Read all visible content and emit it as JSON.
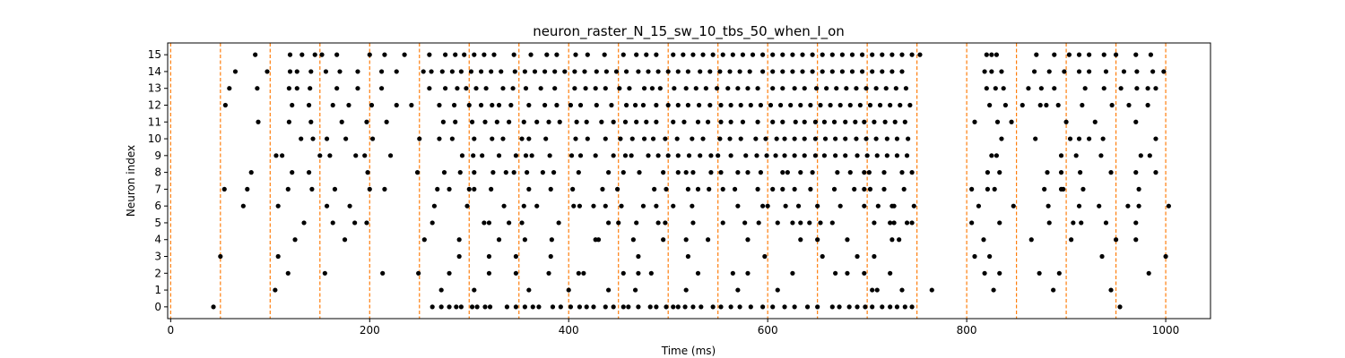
{
  "chart_data": {
    "type": "scatter",
    "title": "neuron_raster_N_15_sw_10_tbs_50_when_I_on",
    "xlabel": "Time (ms)",
    "ylabel": "Neuron index",
    "xlim": [
      -3,
      1045
    ],
    "ylim": [
      -0.7,
      15.7
    ],
    "x_ticks": [
      0,
      200,
      400,
      600,
      800,
      1000
    ],
    "y_ticks": [
      0,
      1,
      2,
      3,
      4,
      5,
      6,
      7,
      8,
      9,
      10,
      11,
      12,
      13,
      14,
      15
    ],
    "grid": false,
    "legend": "none",
    "spike_color": "#000000",
    "marker_color": "#ff7f0e",
    "markers_x": [
      0,
      50,
      100,
      150,
      200,
      250,
      300,
      350,
      400,
      450,
      500,
      550,
      600,
      650,
      700,
      750,
      800,
      850,
      900,
      950,
      1000
    ],
    "series": [
      {
        "y": 0,
        "x": [
          43,
          263,
          272,
          280,
          287,
          292,
          303,
          308,
          316,
          321,
          338,
          347,
          356,
          364,
          370,
          384,
          392,
          402,
          411,
          418,
          425,
          437,
          445,
          455,
          460,
          470,
          482,
          488,
          498,
          505,
          510,
          517,
          525,
          533,
          545,
          553,
          563,
          572,
          583,
          595,
          605,
          617,
          627,
          640,
          650,
          665,
          672,
          682,
          690,
          698,
          705,
          715,
          723,
          730,
          738,
          745,
          954
        ]
      },
      {
        "y": 1,
        "x": [
          105,
          272,
          305,
          360,
          400,
          440,
          467,
          518,
          570,
          610,
          705,
          710,
          735,
          765,
          827,
          887,
          945
        ]
      },
      {
        "y": 2,
        "x": [
          118,
          155,
          213,
          249,
          280,
          320,
          347,
          380,
          410,
          415,
          455,
          470,
          483,
          530,
          565,
          580,
          625,
          668,
          680,
          697,
          723,
          818,
          833,
          873,
          893,
          983
        ]
      },
      {
        "y": 3,
        "x": [
          50,
          108,
          290,
          320,
          347,
          382,
          470,
          520,
          597,
          655,
          690,
          707,
          808,
          823,
          936,
          1000
        ]
      },
      {
        "y": 4,
        "x": [
          125,
          175,
          255,
          290,
          330,
          356,
          383,
          427,
          430,
          465,
          495,
          518,
          540,
          580,
          633,
          650,
          680,
          725,
          732,
          817,
          865,
          905,
          950,
          970
        ]
      },
      {
        "y": 5,
        "x": [
          134,
          163,
          185,
          197,
          263,
          315,
          320,
          340,
          353,
          390,
          440,
          450,
          468,
          490,
          497,
          525,
          555,
          577,
          591,
          610,
          625,
          633,
          642,
          653,
          665,
          707,
          723,
          727,
          740,
          745,
          805,
          833,
          883,
          907,
          915,
          940,
          970
        ]
      },
      {
        "y": 6,
        "x": [
          73,
          108,
          157,
          180,
          265,
          298,
          335,
          355,
          368,
          405,
          411,
          425,
          437,
          453,
          475,
          488,
          505,
          524,
          570,
          595,
          600,
          618,
          631,
          650,
          673,
          697,
          711,
          725,
          727,
          747,
          812,
          847,
          882,
          913,
          933,
          962,
          973,
          1003
        ]
      },
      {
        "y": 7,
        "x": [
          54,
          77,
          118,
          142,
          165,
          200,
          215,
          268,
          280,
          300,
          305,
          322,
          360,
          382,
          404,
          434,
          449,
          486,
          498,
          520,
          530,
          541,
          555,
          567,
          590,
          605,
          615,
          627,
          643,
          667,
          687,
          697,
          703,
          717,
          737,
          805,
          821,
          828,
          878,
          895,
          897,
          917,
          973
        ]
      },
      {
        "y": 8,
        "x": [
          81,
          122,
          139,
          198,
          248,
          275,
          291,
          305,
          324,
          337,
          345,
          358,
          374,
          385,
          410,
          440,
          455,
          471,
          495,
          510,
          518,
          525,
          543,
          553,
          570,
          580,
          593,
          615,
          620,
          633,
          645,
          670,
          683,
          697,
          702,
          717,
          735,
          745,
          821,
          833,
          881,
          895,
          914,
          945,
          970,
          990
        ]
      },
      {
        "y": 9,
        "x": [
          106,
          112,
          150,
          160,
          186,
          195,
          221,
          293,
          304,
          313,
          330,
          347,
          357,
          363,
          381,
          403,
          412,
          427,
          445,
          457,
          463,
          480,
          490,
          500,
          510,
          521,
          532,
          543,
          550,
          563,
          578,
          589,
          599,
          608,
          617,
          627,
          637,
          648,
          657,
          668,
          678,
          690,
          700,
          710,
          720,
          730,
          740,
          825,
          830,
          895,
          910,
          935,
          975,
          984
        ]
      },
      {
        "y": 10,
        "x": [
          131,
          143,
          157,
          176,
          203,
          250,
          270,
          283,
          305,
          323,
          334,
          353,
          360,
          377,
          407,
          419,
          437,
          452,
          464,
          476,
          485,
          497,
          509,
          524,
          535,
          552,
          562,
          573,
          588,
          598,
          609,
          617,
          627,
          637,
          648,
          658,
          668,
          678,
          689,
          699,
          709,
          720,
          730,
          741,
          835,
          869,
          904,
          913,
          923,
          937,
          990
        ]
      },
      {
        "y": 11,
        "x": [
          88,
          119,
          141,
          172,
          197,
          217,
          274,
          286,
          303,
          316,
          328,
          340,
          355,
          368,
          380,
          391,
          408,
          418,
          433,
          445,
          457,
          468,
          478,
          488,
          505,
          516,
          530,
          540,
          553,
          563,
          575,
          590,
          605,
          615,
          628,
          637,
          648,
          657,
          667,
          678,
          688,
          697,
          707,
          718,
          728,
          738,
          808,
          831,
          845,
          900,
          929,
          970
        ]
      },
      {
        "y": 12,
        "x": [
          55,
          122,
          139,
          163,
          179,
          202,
          227,
          242,
          270,
          285,
          300,
          312,
          323,
          330,
          342,
          360,
          376,
          388,
          402,
          412,
          428,
          443,
          458,
          467,
          475,
          488,
          500,
          510,
          520,
          531,
          542,
          553,
          563,
          573,
          583,
          593,
          603,
          613,
          623,
          633,
          643,
          653,
          663,
          673,
          683,
          693,
          703,
          713,
          723,
          733,
          743,
          823,
          839,
          856,
          874,
          880,
          892,
          916,
          946,
          963,
          982
        ]
      },
      {
        "y": 13,
        "x": [
          59,
          87,
          119,
          127,
          140,
          167,
          188,
          212,
          260,
          276,
          288,
          297,
          307,
          317,
          334,
          344,
          357,
          372,
          386,
          406,
          417,
          427,
          437,
          451,
          461,
          476,
          484,
          492,
          506,
          518,
          528,
          538,
          549,
          560,
          570,
          580,
          590,
          605,
          615,
          627,
          637,
          649,
          659,
          669,
          679,
          689,
          699,
          709,
          719,
          729,
          739,
          820,
          829,
          837,
          862,
          875,
          888,
          919,
          938,
          955,
          971,
          982,
          990
        ]
      },
      {
        "y": 14,
        "x": [
          65,
          97,
          120,
          127,
          141,
          156,
          170,
          188,
          212,
          227,
          254,
          262,
          273,
          283,
          292,
          302,
          312,
          322,
          332,
          346,
          356,
          366,
          376,
          386,
          396,
          406,
          416,
          428,
          438,
          448,
          458,
          470,
          480,
          490,
          500,
          510,
          520,
          532,
          542,
          552,
          562,
          572,
          582,
          595,
          605,
          615,
          625,
          635,
          645,
          655,
          665,
          675,
          685,
          695,
          705,
          715,
          725,
          735,
          818,
          825,
          835,
          868,
          883,
          898,
          913,
          923,
          940,
          958,
          971,
          987,
          998
        ]
      },
      {
        "y": 15,
        "x": [
          85,
          120,
          132,
          145,
          152,
          167,
          200,
          215,
          235,
          260,
          276,
          286,
          295,
          305,
          315,
          325,
          345,
          362,
          378,
          388,
          407,
          419,
          436,
          455,
          468,
          478,
          488,
          505,
          515,
          525,
          535,
          545,
          555,
          565,
          575,
          585,
          595,
          605,
          615,
          625,
          635,
          645,
          655,
          665,
          675,
          685,
          695,
          705,
          715,
          725,
          735,
          745,
          753,
          820,
          825,
          830,
          870,
          888,
          903,
          913,
          923,
          938,
          950,
          970,
          985
        ]
      }
    ]
  }
}
